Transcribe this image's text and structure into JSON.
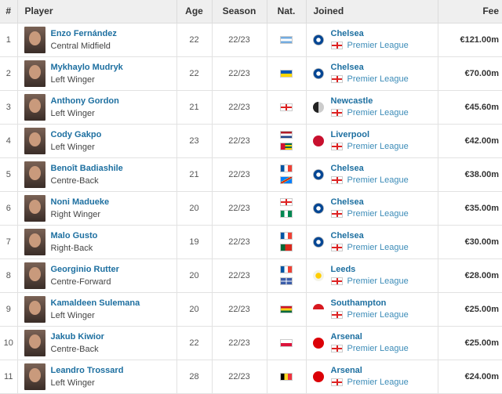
{
  "headers": {
    "rank": "#",
    "player": "Player",
    "age": "Age",
    "season": "Season",
    "nat": "Nat.",
    "joined": "Joined",
    "fee": "Fee"
  },
  "rows": [
    {
      "rank": "1",
      "name": "Enzo Fernández",
      "position": "Central Midfield",
      "age": "22",
      "season": "22/23",
      "flags": [
        "argentina"
      ],
      "club": "Chelsea",
      "club_badge": "chelsea",
      "league": "Premier League",
      "fee": "€121.00m"
    },
    {
      "rank": "2",
      "name": "Mykhaylo Mudryk",
      "position": "Left Winger",
      "age": "22",
      "season": "22/23",
      "flags": [
        "ukraine"
      ],
      "club": "Chelsea",
      "club_badge": "chelsea",
      "league": "Premier League",
      "fee": "€70.00m"
    },
    {
      "rank": "3",
      "name": "Anthony Gordon",
      "position": "Left Winger",
      "age": "21",
      "season": "22/23",
      "flags": [
        "england"
      ],
      "club": "Newcastle",
      "club_badge": "newcastle",
      "league": "Premier League",
      "fee": "€45.60m"
    },
    {
      "rank": "4",
      "name": "Cody Gakpo",
      "position": "Left Winger",
      "age": "23",
      "season": "22/23",
      "flags": [
        "netherlands",
        "togo"
      ],
      "club": "Liverpool",
      "club_badge": "liverpool",
      "league": "Premier League",
      "fee": "€42.00m"
    },
    {
      "rank": "5",
      "name": "Benoît Badiashile",
      "position": "Centre-Back",
      "age": "21",
      "season": "22/23",
      "flags": [
        "france",
        "dr-congo"
      ],
      "club": "Chelsea",
      "club_badge": "chelsea",
      "league": "Premier League",
      "fee": "€38.00m"
    },
    {
      "rank": "6",
      "name": "Noni Madueke",
      "position": "Right Winger",
      "age": "20",
      "season": "22/23",
      "flags": [
        "england",
        "nigeria"
      ],
      "club": "Chelsea",
      "club_badge": "chelsea",
      "league": "Premier League",
      "fee": "€35.00m"
    },
    {
      "rank": "7",
      "name": "Malo Gusto",
      "position": "Right-Back",
      "age": "19",
      "season": "22/23",
      "flags": [
        "france",
        "portugal"
      ],
      "club": "Chelsea",
      "club_badge": "chelsea",
      "league": "Premier League",
      "fee": "€30.00m"
    },
    {
      "rank": "8",
      "name": "Georginio Rutter",
      "position": "Centre-Forward",
      "age": "20",
      "season": "22/23",
      "flags": [
        "france",
        "martinique"
      ],
      "club": "Leeds",
      "club_badge": "leeds",
      "league": "Premier League",
      "fee": "€28.00m"
    },
    {
      "rank": "9",
      "name": "Kamaldeen Sulemana",
      "position": "Left Winger",
      "age": "20",
      "season": "22/23",
      "flags": [
        "ghana"
      ],
      "club": "Southampton",
      "club_badge": "southampton",
      "league": "Premier League",
      "fee": "€25.00m"
    },
    {
      "rank": "10",
      "name": "Jakub Kiwior",
      "position": "Centre-Back",
      "age": "22",
      "season": "22/23",
      "flags": [
        "poland"
      ],
      "club": "Arsenal",
      "club_badge": "arsenal",
      "league": "Premier League",
      "fee": "€25.00m"
    },
    {
      "rank": "11",
      "name": "Leandro Trossard",
      "position": "Left Winger",
      "age": "28",
      "season": "22/23",
      "flags": [
        "belgium"
      ],
      "club": "Arsenal",
      "club_badge": "arsenal",
      "league": "Premier League",
      "fee": "€24.00m"
    }
  ],
  "colors": {
    "link": "#1d6fa0",
    "league_link": "#3d8cb8",
    "header_bg": "#efefef"
  }
}
